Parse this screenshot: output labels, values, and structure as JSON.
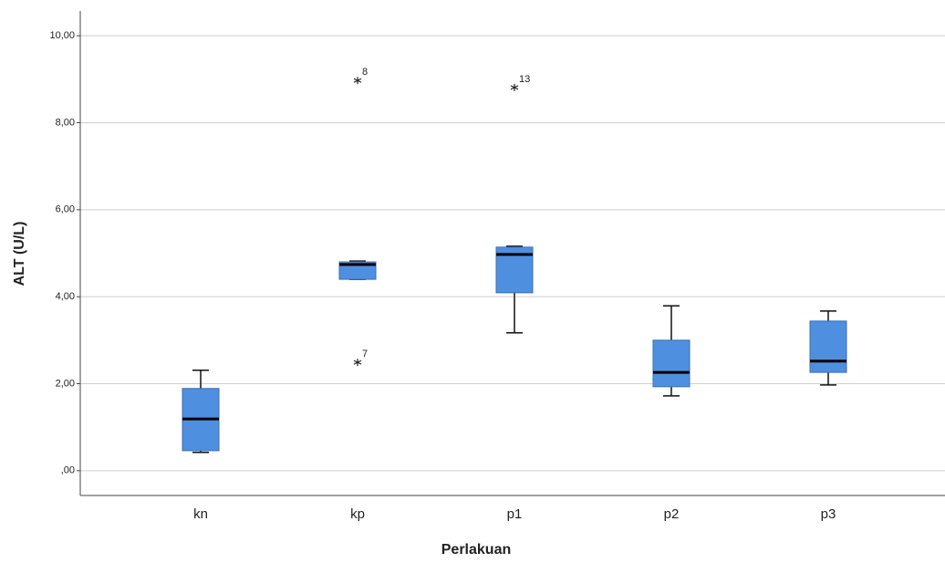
{
  "chart_data": {
    "type": "box",
    "xlabel": "Perlakuan",
    "ylabel": "ALT (U/L)",
    "categories": [
      "kn",
      "kp",
      "p1",
      "p2",
      "p3"
    ],
    "color": "#4f8fe0",
    "boxes": [
      {
        "whisker_low": 0.42,
        "q1": 0.46,
        "median": 1.19,
        "q3": 1.89,
        "whisker_high": 2.31,
        "outliers": []
      },
      {
        "whisker_low": 4.4,
        "q1": 4.4,
        "median": 4.74,
        "q3": 4.8,
        "whisker_high": 4.82,
        "outliers": [
          {
            "value": 8.97,
            "case": 8
          },
          {
            "value": 2.49,
            "case": 7
          }
        ]
      },
      {
        "whisker_low": 3.17,
        "q1": 4.09,
        "median": 4.97,
        "q3": 5.14,
        "whisker_high": 5.16,
        "outliers": [
          {
            "value": 8.81,
            "case": 13
          }
        ]
      },
      {
        "whisker_low": 1.72,
        "q1": 1.93,
        "median": 2.26,
        "q3": 3.0,
        "whisker_high": 3.79,
        "outliers": []
      },
      {
        "whisker_low": 1.97,
        "q1": 2.26,
        "median": 2.52,
        "q3": 3.44,
        "whisker_high": 3.67,
        "outliers": []
      }
    ],
    "ylim": [
      -0.57,
      10.57
    ],
    "yticks": [
      {
        "value": 0,
        "label": ",00"
      },
      {
        "value": 2,
        "label": "2,00"
      },
      {
        "value": 4,
        "label": "4,00"
      },
      {
        "value": 6,
        "label": "6,00"
      },
      {
        "value": 8,
        "label": "8,00"
      },
      {
        "value": 10,
        "label": "10,00"
      }
    ],
    "grid": true
  }
}
